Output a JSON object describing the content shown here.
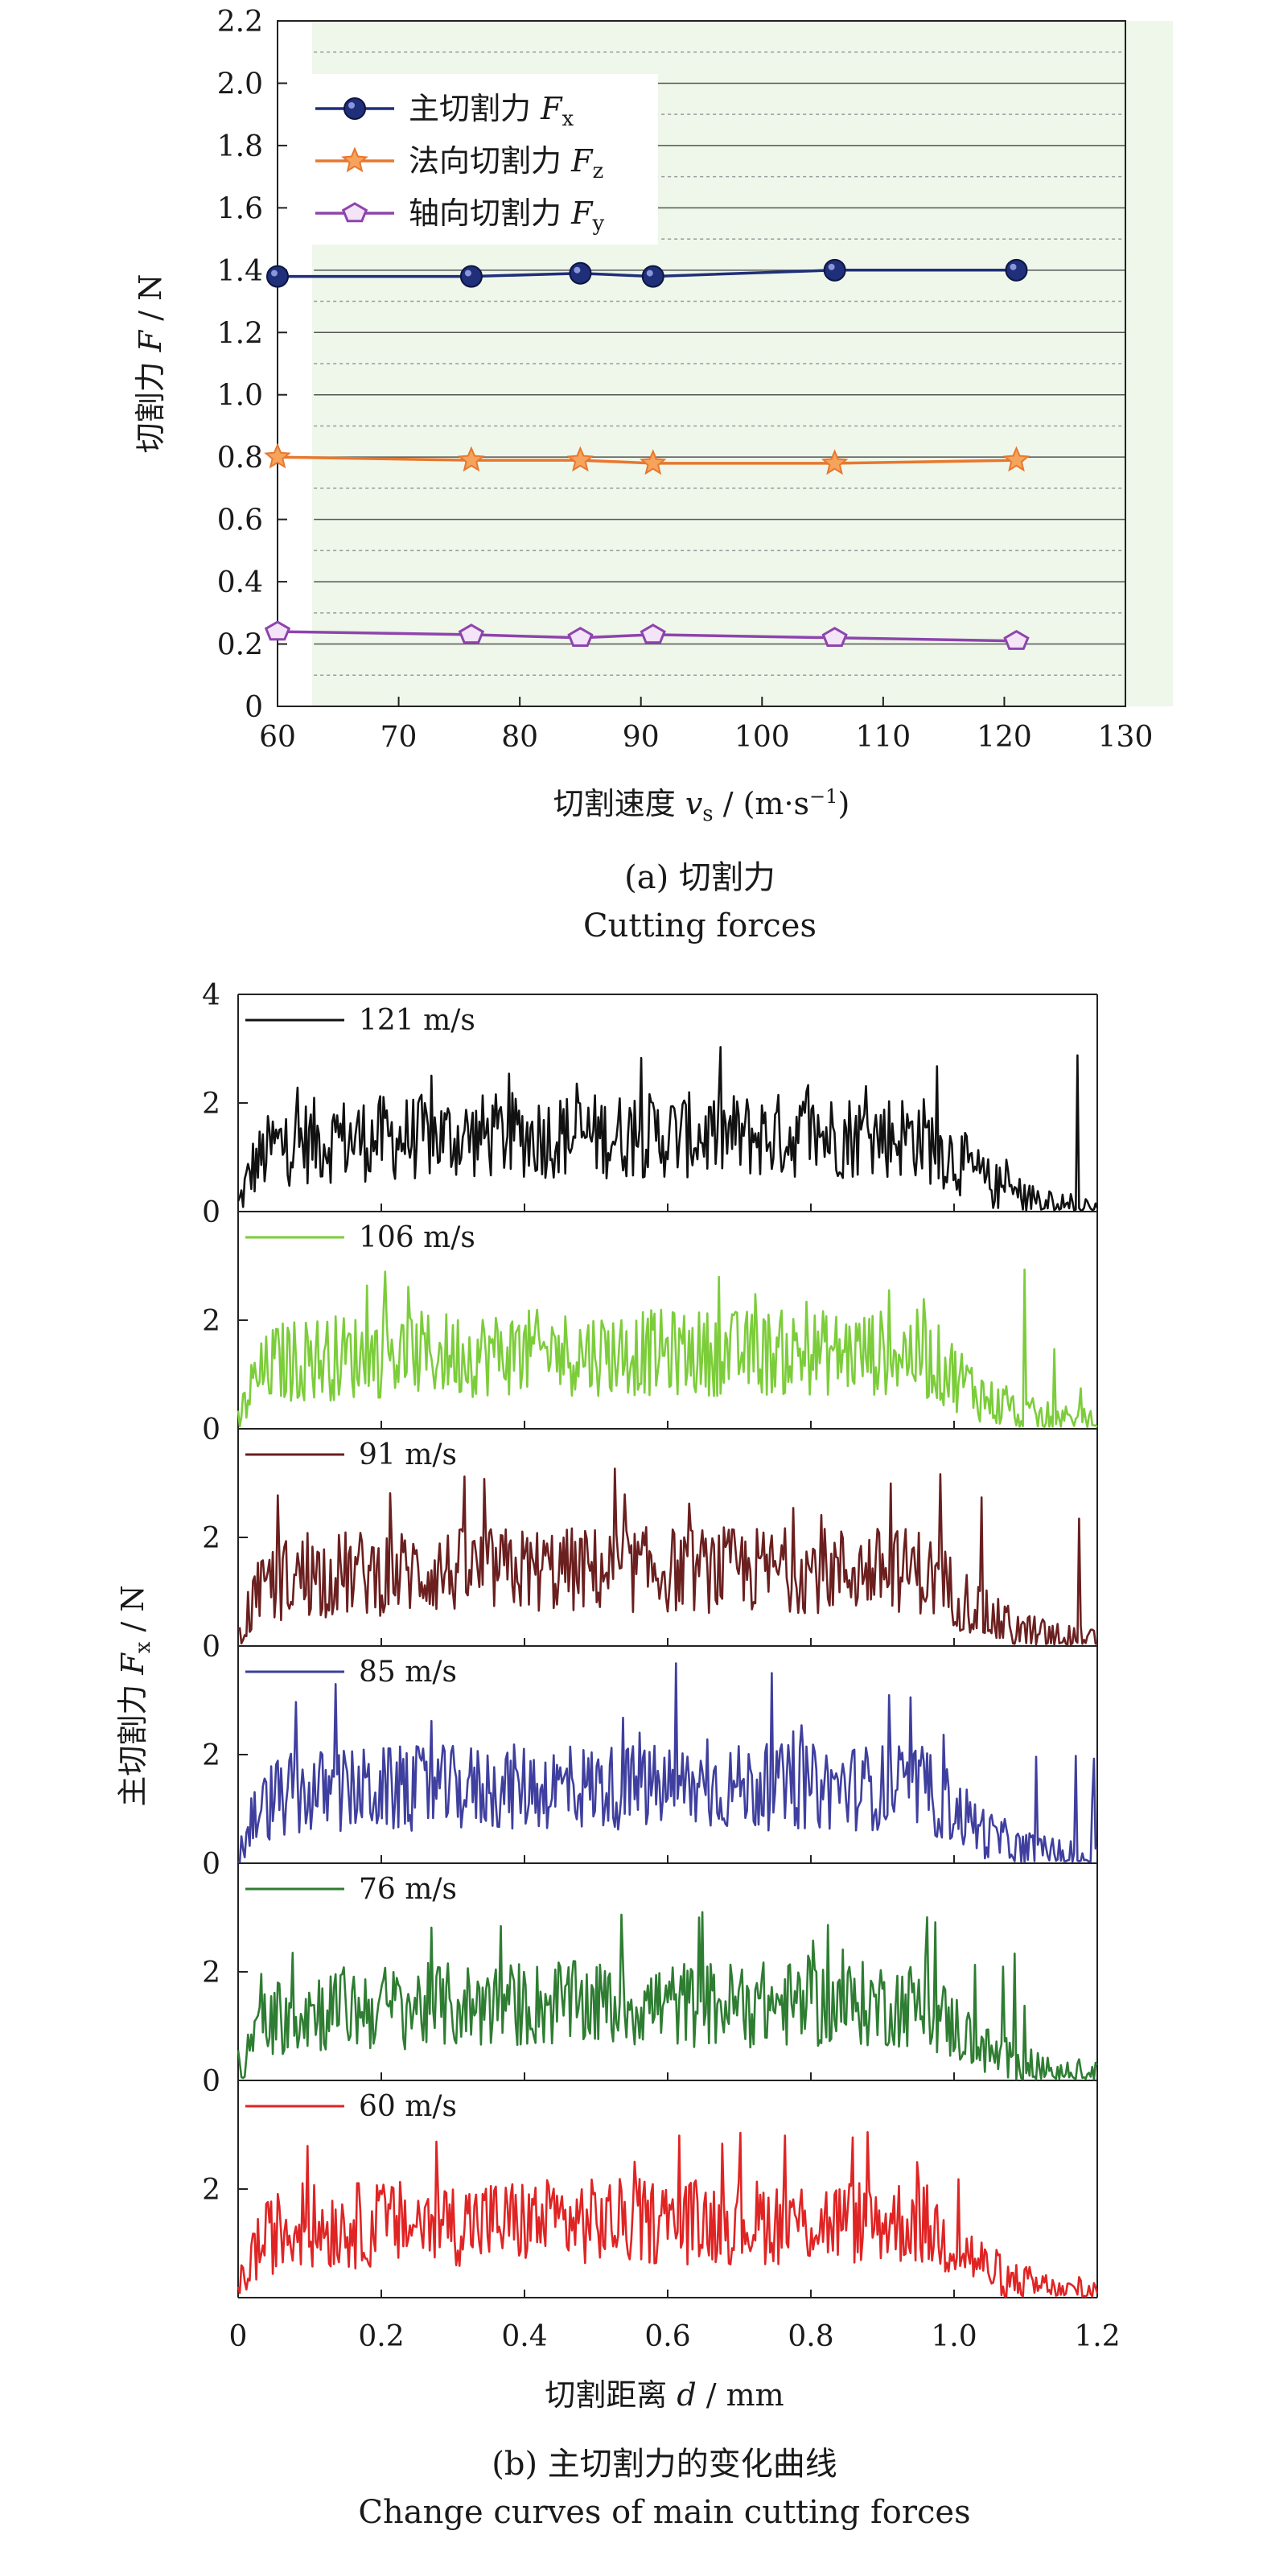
{
  "chart_data": [
    {
      "type": "line",
      "title": "",
      "xlabel": "切割速度 v_s / (m·s⁻¹)",
      "ylabel": "切割力 F / N",
      "xlim": [
        60,
        130
      ],
      "ylim": [
        0,
        2.2
      ],
      "xticks": [
        60,
        70,
        80,
        90,
        100,
        110,
        120,
        130
      ],
      "yticks": [
        0,
        0.2,
        0.4,
        0.6,
        0.8,
        1.0,
        1.2,
        1.4,
        1.6,
        1.8,
        2.0,
        2.2
      ],
      "grid": true,
      "legend_position": "top-left",
      "x": [
        60,
        76,
        85,
        91,
        106,
        121
      ],
      "series": [
        {
          "name": "主切割力 F_x",
          "marker": "circle",
          "color": "#1f2f7a",
          "values": [
            1.38,
            1.38,
            1.39,
            1.38,
            1.4,
            1.4
          ]
        },
        {
          "name": "法向切割力 F_z",
          "marker": "star",
          "color": "#e8772e",
          "values": [
            0.8,
            0.79,
            0.79,
            0.78,
            0.78,
            0.79
          ]
        },
        {
          "name": "轴向切割力 F_y",
          "marker": "pentagon",
          "color": "#8e44ad",
          "values": [
            0.24,
            0.23,
            0.22,
            0.23,
            0.22,
            0.21
          ]
        }
      ],
      "caption": "(a) 切割力",
      "caption_en": "Cutting forces",
      "legend_items": [
        {
          "prefix": "主切割力 ",
          "var": "F",
          "sub": "x"
        },
        {
          "prefix": "法向切割力 ",
          "var": "F",
          "sub": "z"
        },
        {
          "prefix": "轴向切割力 ",
          "var": "F",
          "sub": "y"
        }
      ],
      "xlabel_parts": {
        "prefix": "切割速度 ",
        "var": "v",
        "sub": "s",
        "suffix": " / (m·s",
        "sup": "−1",
        "end": ")"
      },
      "ylabel_parts": {
        "prefix": "切割力 ",
        "var": "F",
        "suffix": " / N"
      }
    },
    {
      "type": "line",
      "title": "",
      "xlabel": "切割距离 d / mm",
      "ylabel": "主切割力 F_x / N",
      "xlim": [
        0,
        1.2
      ],
      "ylim": [
        0,
        4
      ],
      "xticks": [
        0,
        0.2,
        0.4,
        0.6,
        0.8,
        1.0,
        1.2
      ],
      "yticks": [
        0,
        2,
        4
      ],
      "panel_ylim": [
        0,
        4
      ],
      "description": "Six stacked panels of noisy main cutting force traces vs cutting distance; force ramps up near 0.02 mm, fluctuates around ~1.3 N up to ~1.0 mm, then decays to ~0.1 N by 1.2 mm.",
      "envelope": {
        "x": [
          0,
          0.02,
          0.05,
          0.1,
          0.2,
          0.4,
          0.6,
          0.8,
          0.95,
          1.0,
          1.05,
          1.1,
          1.15,
          1.2
        ],
        "mean": [
          0.1,
          0.8,
          1.2,
          1.3,
          1.35,
          1.4,
          1.4,
          1.4,
          1.4,
          1.0,
          0.5,
          0.25,
          0.12,
          0.08
        ]
      },
      "series": [
        {
          "name": "121 m/s",
          "color": "#111111",
          "peak": 3.1
        },
        {
          "name": "106 m/s",
          "color": "#7ccd3a",
          "peak": 3.0
        },
        {
          "name": "91 m/s",
          "color": "#6b1f1f",
          "peak": 3.35
        },
        {
          "name": "85 m/s",
          "color": "#3f3f9f",
          "peak": 3.8
        },
        {
          "name": "76 m/s",
          "color": "#2e7d32",
          "peak": 3.1
        },
        {
          "name": "60 m/s",
          "color": "#e02424",
          "peak": 3.1
        }
      ],
      "caption": "(b) 主切割力的变化曲线",
      "caption_en": "Change curves of main cutting forces",
      "xlabel_parts": {
        "prefix": "切割距离 ",
        "var": "d",
        "suffix": " / mm"
      },
      "ylabel_parts": {
        "prefix": "主切割力 ",
        "var": "F",
        "sub": "x",
        "suffix": " / N"
      }
    }
  ]
}
